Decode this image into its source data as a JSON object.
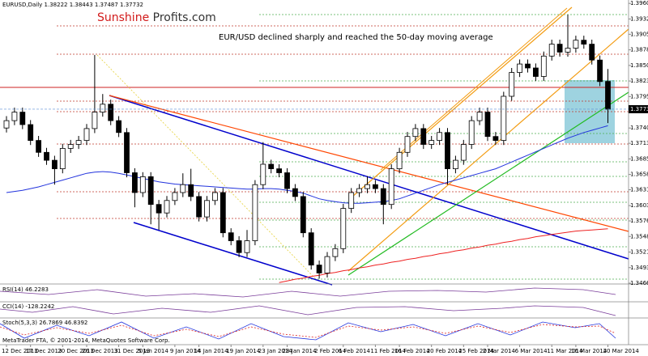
{
  "header": "EURUSD,Daily  1.38222 1.38443 1.37487 1.37732",
  "logo": [
    "Sunshine",
    "Profits.com"
  ],
  "footer": "MetaTrader FTA, © 2001-2014, MetaQuotes Software Corp.",
  "indicators": [
    "RSI(14) 46.2283",
    "CCI(14) -128.2242",
    "Stoch(5,3,3) 26.7869 46.8392"
  ],
  "chart_data": {
    "type": "candlestick",
    "annotation": "EUR/USD declined sharply and reached the 50-day moving average",
    "categories": [
      "12 Dec 2013",
      null,
      null,
      "17 Dec 2013",
      null,
      null,
      null,
      "20 Dec 2013",
      null,
      null,
      "26 Dec 2013",
      null,
      null,
      null,
      "31 Dec 2013",
      null,
      null,
      "5 Jan 2014",
      null,
      null,
      null,
      "9 Jan 2014",
      null,
      null,
      "14 Jan 2014",
      null,
      null,
      null,
      "19 Jan 2014",
      null,
      null,
      null,
      "23 Jan 2014",
      null,
      null,
      "28 Jan 2014",
      null,
      null,
      null,
      "2 Feb 2014",
      null,
      null,
      "6 Feb 2014",
      null,
      null,
      null,
      "11 Feb 2014",
      null,
      null,
      "16 Feb 2014",
      null,
      null,
      null,
      "20 Feb 2014",
      null,
      null,
      null,
      "25 Feb 2014",
      null,
      null,
      "2 Mar 2014",
      null,
      null,
      null,
      "6 Mar 2014",
      null,
      null,
      null,
      "11 Mar 2014",
      null,
      null,
      "16 Mar 2014",
      null,
      null,
      null,
      "20 Mar 2014"
    ],
    "open": [
      1.374,
      1.3753,
      1.3768,
      1.3746,
      1.3718,
      1.3697,
      1.3683,
      1.3668,
      1.3704,
      1.3711,
      1.3718,
      1.3739,
      1.3768,
      1.3782,
      1.3753,
      1.3732,
      1.3661,
      1.3626,
      1.3654,
      1.3605,
      1.359,
      1.3612,
      1.3626,
      1.364,
      1.3619,
      1.3583,
      1.3612,
      1.3626,
      1.3555,
      1.3541,
      1.352,
      1.3541,
      1.364,
      1.3676,
      1.3668,
      1.3661,
      1.3633,
      1.3619,
      1.3555,
      1.3498,
      1.3484,
      1.3513,
      1.3527,
      1.3598,
      1.3626,
      1.3633,
      1.364,
      1.3633,
      1.3605,
      1.3668,
      1.3697,
      1.3725,
      1.3739,
      1.3711,
      1.3718,
      1.3732,
      1.3668,
      1.3683,
      1.3711,
      1.3753,
      1.3768,
      1.3725,
      1.3718,
      1.3796,
      1.3838,
      1.3853,
      1.3846,
      1.3831,
      1.3867,
      1.3888,
      1.3874,
      1.3881,
      1.3895,
      1.3888,
      1.386,
      1.38222
    ],
    "high": [
      1.3761,
      1.3776,
      1.3776,
      1.3754,
      1.3726,
      1.3705,
      1.3691,
      1.3712,
      1.3719,
      1.3726,
      1.3747,
      1.3869,
      1.38,
      1.379,
      1.3761,
      1.374,
      1.3669,
      1.3662,
      1.3662,
      1.3613,
      1.362,
      1.3634,
      1.366,
      1.3668,
      1.3627,
      1.362,
      1.3634,
      1.3634,
      1.3563,
      1.3549,
      1.356,
      1.3648,
      1.3715,
      1.3684,
      1.3676,
      1.3669,
      1.3641,
      1.3627,
      1.3563,
      1.3506,
      1.3521,
      1.3535,
      1.3606,
      1.3634,
      1.3641,
      1.3655,
      1.3648,
      1.3641,
      1.3676,
      1.3705,
      1.3733,
      1.3747,
      1.3747,
      1.3726,
      1.374,
      1.374,
      1.3691,
      1.3719,
      1.3761,
      1.3776,
      1.3776,
      1.3733,
      1.3804,
      1.3846,
      1.3861,
      1.3861,
      1.3854,
      1.3875,
      1.3896,
      1.3896,
      1.394,
      1.3903,
      1.3903,
      1.3896,
      1.3868,
      1.38443
    ],
    "low": [
      1.3732,
      1.3745,
      1.3738,
      1.371,
      1.3689,
      1.3675,
      1.364,
      1.366,
      1.3696,
      1.3703,
      1.371,
      1.3731,
      1.376,
      1.3745,
      1.3724,
      1.3653,
      1.36,
      1.3618,
      1.357,
      1.356,
      1.3582,
      1.3604,
      1.3618,
      1.3611,
      1.3575,
      1.3575,
      1.3604,
      1.3547,
      1.3533,
      1.3512,
      1.3512,
      1.3533,
      1.3632,
      1.366,
      1.3653,
      1.3625,
      1.3611,
      1.3547,
      1.349,
      1.3474,
      1.3476,
      1.3505,
      1.3519,
      1.359,
      1.3618,
      1.3625,
      1.3625,
      1.357,
      1.3597,
      1.366,
      1.3689,
      1.3717,
      1.3703,
      1.3703,
      1.371,
      1.364,
      1.366,
      1.3675,
      1.3703,
      1.3745,
      1.3717,
      1.371,
      1.371,
      1.3788,
      1.383,
      1.3838,
      1.3823,
      1.3823,
      1.3859,
      1.3866,
      1.3866,
      1.3873,
      1.388,
      1.3852,
      1.3814,
      1.37487
    ],
    "close": [
      1.3753,
      1.3768,
      1.3746,
      1.3718,
      1.3697,
      1.3683,
      1.3668,
      1.3704,
      1.3711,
      1.3718,
      1.3739,
      1.3768,
      1.3782,
      1.3753,
      1.3732,
      1.3661,
      1.3626,
      1.3654,
      1.3605,
      1.359,
      1.3612,
      1.3626,
      1.364,
      1.3619,
      1.3583,
      1.3612,
      1.3626,
      1.3555,
      1.3541,
      1.352,
      1.3541,
      1.364,
      1.3676,
      1.3668,
      1.3661,
      1.3633,
      1.3619,
      1.3555,
      1.3498,
      1.3484,
      1.3513,
      1.3527,
      1.3598,
      1.3626,
      1.3633,
      1.364,
      1.3633,
      1.3605,
      1.3668,
      1.3697,
      1.3725,
      1.3739,
      1.3711,
      1.3718,
      1.3732,
      1.3668,
      1.3683,
      1.3711,
      1.3753,
      1.3768,
      1.3725,
      1.3718,
      1.3796,
      1.3838,
      1.3853,
      1.3846,
      1.3831,
      1.3867,
      1.3888,
      1.3874,
      1.3881,
      1.3895,
      1.3888,
      1.386,
      1.3822,
      1.37732
    ],
    "series": [
      {
        "color": "#2233dd",
        "values": [
          1.3626,
          1.3628,
          1.363,
          1.3633,
          1.3636,
          1.364,
          1.3644,
          1.3648,
          1.3652,
          1.3656,
          1.366,
          1.3662,
          1.3663,
          1.3662,
          1.366,
          1.3657,
          1.3654,
          1.3651,
          1.3648,
          1.3645,
          1.3643,
          1.3641,
          1.364,
          1.3639,
          1.3638,
          1.3637,
          1.3636,
          1.3635,
          1.3634,
          1.3633,
          1.3632,
          1.3632,
          1.3633,
          1.3633,
          1.3632,
          1.363,
          1.3628,
          1.3625,
          1.362,
          1.3615,
          1.3612,
          1.361,
          1.3608,
          1.3607,
          1.3607,
          1.3608,
          1.3609,
          1.361,
          1.3612,
          1.3615,
          1.362,
          1.3625,
          1.363,
          1.3635,
          1.364,
          1.3644,
          1.3648,
          1.3652,
          1.3656,
          1.366,
          1.3664,
          1.3668,
          1.3674,
          1.368,
          1.3686,
          1.3692,
          1.3698,
          1.3704,
          1.371,
          1.3716,
          1.3722,
          1.3727,
          1.3732,
          1.3736,
          1.374,
          1.3744
        ]
      },
      {
        "color": "#ee2222",
        "values": [
          null,
          null,
          null,
          null,
          null,
          null,
          null,
          null,
          null,
          null,
          null,
          null,
          null,
          null,
          null,
          null,
          null,
          null,
          null,
          null,
          null,
          null,
          null,
          null,
          null,
          null,
          null,
          null,
          null,
          null,
          null,
          null,
          null,
          null,
          1.3467,
          1.347,
          1.3473,
          1.3475,
          1.3478,
          1.348,
          1.3483,
          1.3485,
          1.3488,
          1.349,
          1.3493,
          1.3495,
          1.3498,
          1.35,
          1.3503,
          1.3505,
          1.3508,
          1.351,
          1.3513,
          1.3515,
          1.3518,
          1.352,
          1.3523,
          1.3525,
          1.3528,
          1.353,
          1.3533,
          1.3535,
          1.3538,
          1.354,
          1.3543,
          1.3545,
          1.3548,
          1.355,
          1.3552,
          1.3554,
          1.3556,
          1.3558,
          1.3559,
          1.356,
          1.3561,
          1.3562
        ]
      }
    ],
    "last_price": 1.37732,
    "ylim": [
      1.3466,
      1.3966
    ],
    "yticks": [
      {
        "value": 1.396,
        "label": "1.39600"
      },
      1.39325,
      1.39055,
      {
        "value": 1.3878,
        "label": "1.38780"
      },
      1.38505,
      {
        "value": 1.3823,
        "label": "1.38230"
      },
      1.37955,
      {
        "value": 1.374,
        "label": "1.37400"
      },
      {
        "value": 1.3713,
        "label": "1.37130"
      },
      1.36855,
      {
        "value": 1.3658,
        "label": "1.36580"
      },
      {
        "value": 1.3631,
        "label": "1.36310"
      },
      {
        "value": 1.3603,
        "label": "1.36030"
      },
      {
        "value": 1.3576,
        "label": "1.35760"
      },
      1.35485,
      {
        "value": 1.3521,
        "label": "1.35210"
      },
      1.34935,
      {
        "value": 1.3466,
        "label": "1.34660"
      }
    ],
    "grid": false
  }
}
